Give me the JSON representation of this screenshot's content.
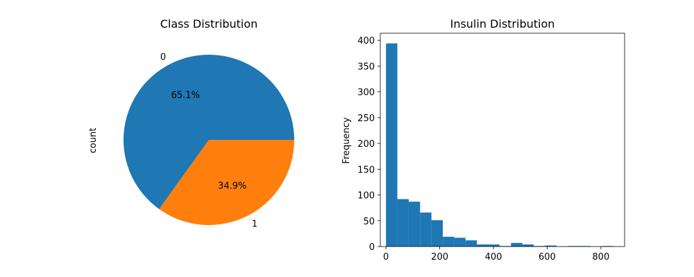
{
  "chart_data": [
    {
      "type": "pie",
      "title": "Class Distribution",
      "ylabel": "count",
      "labels": [
        "0",
        "1"
      ],
      "values": [
        65.1,
        34.9
      ],
      "autopct_labels": [
        "65.1%",
        "34.9%"
      ],
      "colors": [
        "#1f77b4",
        "#ff7f0e"
      ],
      "legend": "none"
    },
    {
      "type": "bar",
      "title": "Insulin Distribution",
      "xlabel": "",
      "ylabel": "Frequency",
      "bin_edges": [
        0,
        42.3,
        84.6,
        126.9,
        169.2,
        211.5,
        253.8,
        296.1,
        338.4,
        380.7,
        423,
        465.3,
        507.6,
        549.9,
        592.2,
        634.5,
        676.8,
        719.1,
        761.4,
        803.7,
        846
      ],
      "values": [
        394,
        92,
        87,
        66,
        51,
        19,
        17,
        12,
        4,
        4,
        1,
        7,
        4,
        1,
        2,
        0,
        1,
        1,
        0,
        1
      ],
      "xlim": [
        -21.15,
        888.3
      ],
      "ylim": [
        0,
        413.7
      ],
      "xticks": [
        0,
        200,
        400,
        600,
        800
      ],
      "yticks": [
        0,
        50,
        100,
        150,
        200,
        250,
        300,
        350,
        400
      ],
      "color": "#1f77b4",
      "grid": false
    }
  ]
}
